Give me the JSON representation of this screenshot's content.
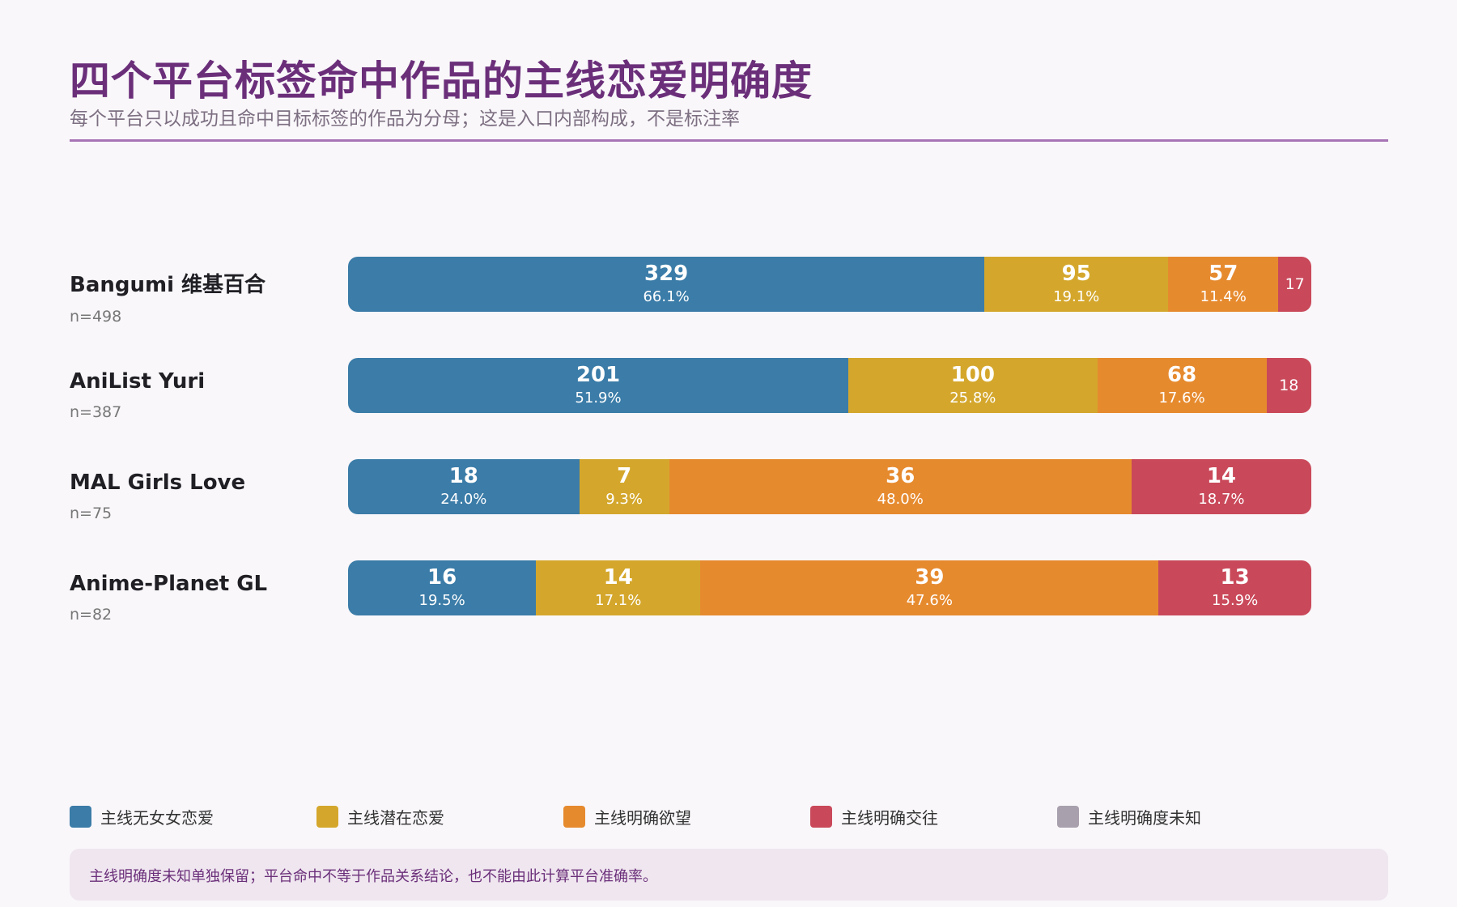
{
  "title": "四个平台标签命中作品的主线恋爱明确度",
  "subtitle": "每个平台只以成功且命中目标标签的作品为分母；这是入口内部构成，不是标注率",
  "note": "主线明确度未知单独保留；平台命中不等于作品关系结论，也不能由此计算平台准确率。",
  "legend": [
    {
      "label": "主线无女女恋爱",
      "color": "#3b7ca8"
    },
    {
      "label": "主线潜在恋爱",
      "color": "#d4a72c"
    },
    {
      "label": "主线明确欲望",
      "color": "#e68a2e"
    },
    {
      "label": "主线明确交往",
      "color": "#c9495a"
    },
    {
      "label": "主线明确度未知",
      "color": "#a9a0ad"
    }
  ],
  "chart_data": {
    "type": "bar",
    "orientation": "horizontal",
    "stacked": true,
    "normalized": true,
    "title": "四个平台标签命中作品的主线恋爱明确度",
    "subtitle": "每个平台只以成功且命中目标标签的作品为分母；这是入口内部构成，不是标注率",
    "legend_position": "bottom",
    "categories": [
      "Bangumi 维基百合",
      "AniList Yuri",
      "MAL Girls Love",
      "Anime-Planet GL"
    ],
    "n": [
      "n=498",
      "n=387",
      "n=75",
      "n=82"
    ],
    "series": [
      {
        "name": "主线无女女恋爱",
        "color": "#3b7ca8",
        "values": [
          329,
          201,
          18,
          16
        ],
        "percents": [
          "66.1%",
          "51.9%",
          "24.0%",
          "19.5%"
        ]
      },
      {
        "name": "主线潜在恋爱",
        "color": "#d4a72c",
        "values": [
          95,
          100,
          7,
          14
        ],
        "percents": [
          "19.1%",
          "25.8%",
          "9.3%",
          "17.1%"
        ]
      },
      {
        "name": "主线明确欲望",
        "color": "#e68a2e",
        "values": [
          57,
          68,
          36,
          39
        ],
        "percents": [
          "11.4%",
          "17.6%",
          "48.0%",
          "47.6%"
        ]
      },
      {
        "name": "主线明确交往",
        "color": "#c9495a",
        "values": [
          17,
          18,
          14,
          13
        ],
        "percents": [
          "3.4%",
          "4.7%",
          "18.7%",
          "15.9%"
        ]
      },
      {
        "name": "主线明确度未知",
        "color": "#a9a0ad",
        "values": [
          0,
          0,
          0,
          0
        ],
        "percents": [
          "0%",
          "0%",
          "0%",
          "0%"
        ]
      }
    ]
  }
}
